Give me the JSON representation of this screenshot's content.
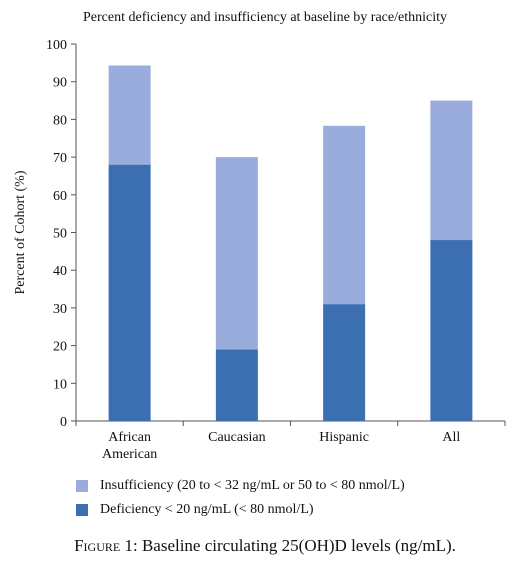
{
  "chart_data": {
    "type": "bar",
    "stacked": true,
    "title": "Percent deficiency and insufficiency at baseline by race/ethnicity",
    "xlabel": "",
    "ylabel": "Percent of Cohort (%)",
    "ylim": [
      0,
      100
    ],
    "yticks": [
      0,
      10,
      20,
      30,
      40,
      50,
      60,
      70,
      80,
      90,
      100
    ],
    "grid": false,
    "legend": "bottom",
    "categories": [
      [
        "African",
        "American"
      ],
      [
        "Caucasian"
      ],
      [
        "Hispanic"
      ],
      [
        "All"
      ]
    ],
    "series": [
      {
        "name": "Deficiency < 20 ng/mL (< 80 nmol/L)",
        "color": "#3b6fb2",
        "values": [
          68,
          19,
          31,
          48
        ]
      },
      {
        "name": "Insufficiency (20 to < 32 ng/mL or 50 to < 80 nmol/L)",
        "color": "#99acdb",
        "values": [
          26.3,
          51,
          47.3,
          37
        ]
      }
    ]
  },
  "caption": "Figure 1: Baseline circulating 25(OH)D levels (ng/mL)."
}
